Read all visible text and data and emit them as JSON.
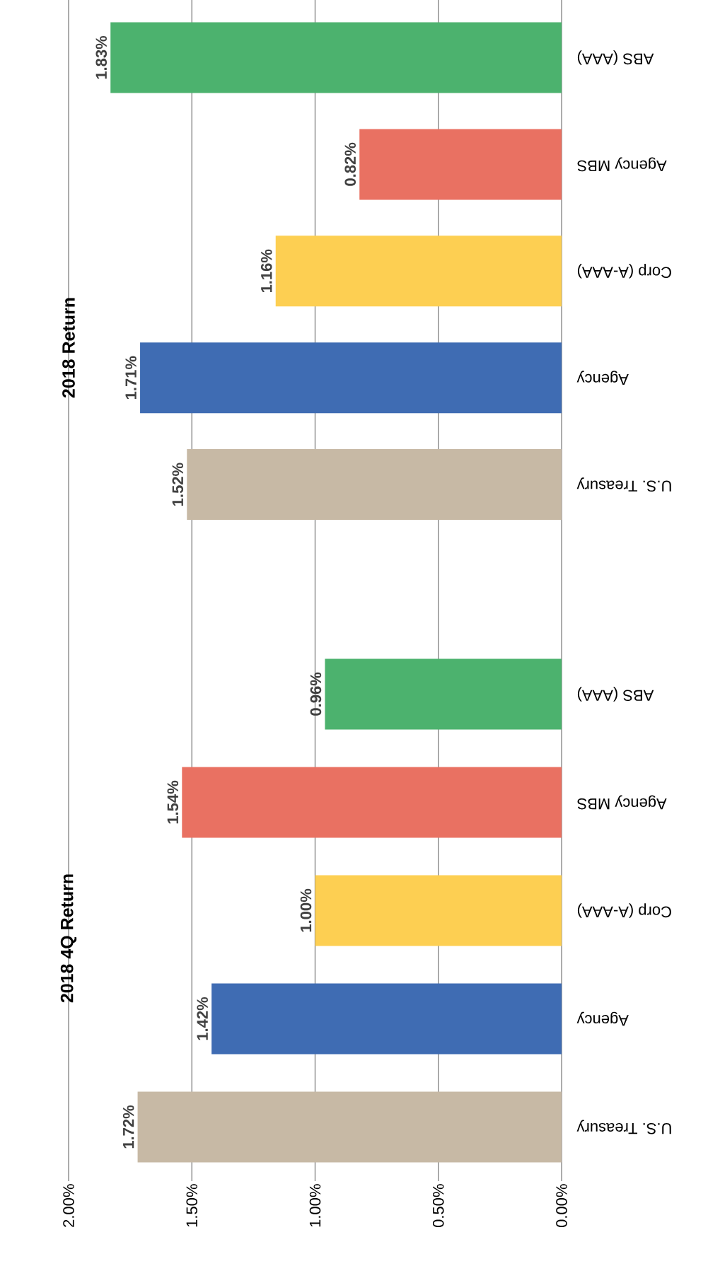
{
  "chart_data": [
    {
      "type": "bar",
      "orientation": "horizontal",
      "title": "2018 Return",
      "categories": [
        "ABS (AAA)",
        "Agency MBS",
        "Corp (A-AAA)",
        "Agency",
        "U.S. Treasury"
      ],
      "values": [
        1.83,
        0.82,
        1.16,
        1.71,
        1.52
      ],
      "colors": [
        "#4cb26e",
        "#e97162",
        "#fdcf52",
        "#3f6cb3",
        "#c7b9a5"
      ],
      "value_labels": [
        "1.83%",
        "0.82%",
        "1.16%",
        "1.71%",
        "1.52%"
      ],
      "xlim": [
        2,
        0
      ],
      "xticks": [
        {
          "value": 2,
          "label": null
        },
        {
          "value": 1.5,
          "label": null
        },
        {
          "value": 1,
          "label": null
        },
        {
          "value": 0.5,
          "label": null
        },
        {
          "value": 0,
          "label": null
        }
      ],
      "grid": "x",
      "tick_labels": "y"
    },
    {
      "type": "bar",
      "orientation": "horizontal",
      "title": "2018 4Q Return",
      "categories": [
        "ABS (AAA)",
        "Agency MBS",
        "Corp (A-AAA)",
        "Agency",
        "U.S. Treasury"
      ],
      "values": [
        0.96,
        1.54,
        1.0,
        1.42,
        1.72
      ],
      "colors": [
        "#4cb26e",
        "#e97162",
        "#fdcf52",
        "#3f6cb3",
        "#c7b9a5"
      ],
      "value_labels": [
        "0.96%",
        "1.54%",
        "1.00%",
        "1.42%",
        "1.72%"
      ],
      "xlim": [
        2,
        0
      ],
      "xticks": [
        {
          "value": 2,
          "label": "2.00%"
        },
        {
          "value": 1.5,
          "label": "1.50%"
        },
        {
          "value": 1,
          "label": "1.00%"
        },
        {
          "value": 0.5,
          "label": "0.50%"
        },
        {
          "value": 0,
          "label": "0.00%"
        }
      ],
      "grid": "x"
    }
  ]
}
